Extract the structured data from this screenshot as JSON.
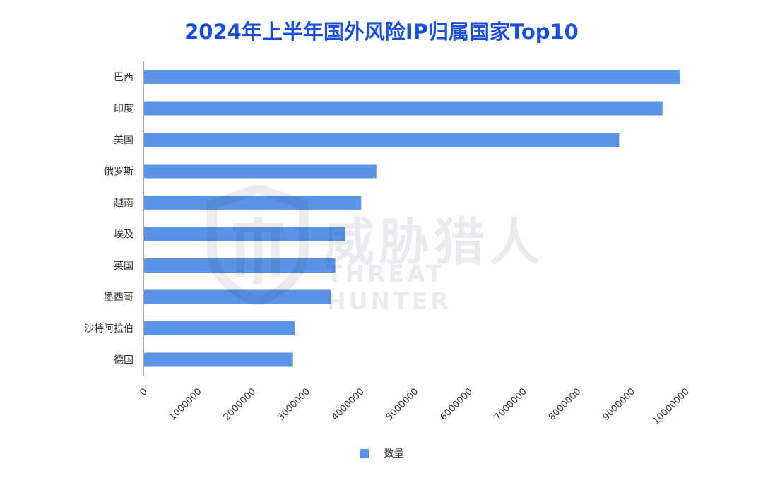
{
  "chart_data": {
    "type": "bar",
    "orientation": "horizontal",
    "title": "2024年上半年国外风险IP归属国家Top10",
    "categories": [
      "巴西",
      "印度",
      "美国",
      "俄罗斯",
      "越南",
      "埃及",
      "英国",
      "墨西哥",
      "沙特阿拉伯",
      "德国"
    ],
    "series": [
      {
        "name": "数量",
        "values": [
          9900000,
          9580000,
          8780000,
          4300000,
          4020000,
          3720000,
          3540000,
          3460000,
          2790000,
          2760000
        ]
      }
    ],
    "xlim": [
      0,
      10000000
    ],
    "x_ticks": [
      "0",
      "1000000",
      "2000000",
      "3000000",
      "4000000",
      "5000000",
      "6000000",
      "7000000",
      "8000000",
      "9000000",
      "10000000"
    ],
    "grid": false,
    "legend_position": "bottom",
    "bar_color": "#5b93e6"
  },
  "watermark": {
    "cn": "威胁猎人",
    "en": "THREAT HUNTER"
  }
}
